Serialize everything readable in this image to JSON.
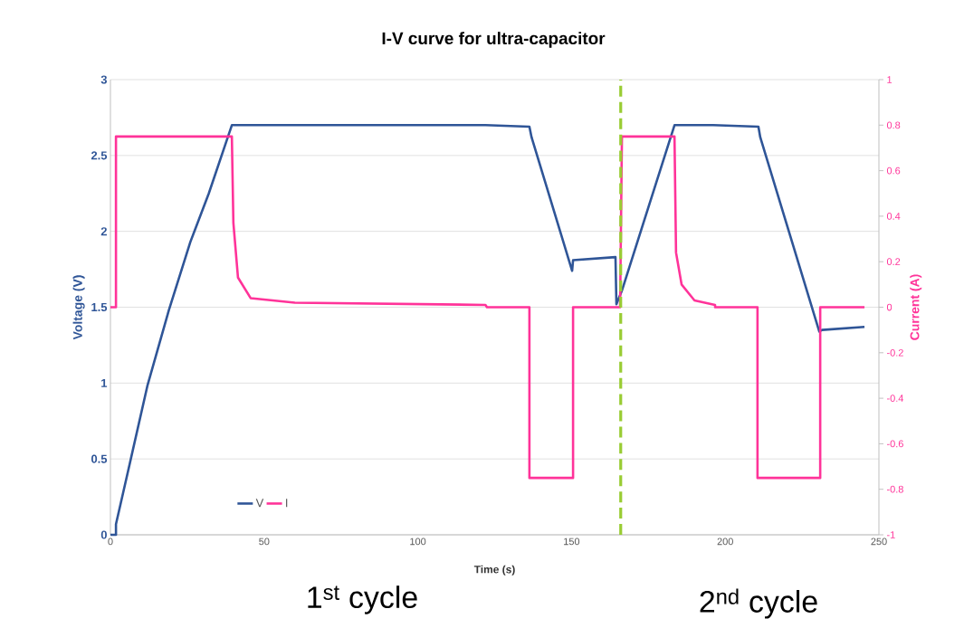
{
  "chart_data": {
    "type": "line",
    "title": "I-V curve for ultra-capacitor",
    "xlabel": "Time (s)",
    "ylabel": "Voltage (V)",
    "y2label": "Current (A)",
    "series": [
      {
        "name": "V",
        "color": "#2f5597",
        "x": [
          0,
          1.8,
          1.8,
          6.3,
          12,
          19,
          26,
          32,
          39.5,
          122,
          136.3,
          137,
          150.2,
          150.5,
          164.3,
          164.6,
          166.4,
          183.5,
          196.1,
          210.8,
          211.4,
          230.6,
          231.5,
          245.3
        ],
        "values": [
          0,
          0,
          0.07,
          0.47,
          0.98,
          1.48,
          1.93,
          2.25,
          2.7,
          2.7,
          2.69,
          2.62,
          1.74,
          1.81,
          1.83,
          1.52,
          1.61,
          2.7,
          2.7,
          2.69,
          2.62,
          1.34,
          1.35,
          1.37
        ]
      },
      {
        "name": "I",
        "color": "#ff3399",
        "axis": "y2",
        "x": [
          0,
          1.8,
          1.8,
          39.5,
          40,
          41.5,
          45.6,
          60,
          122,
          122.5,
          136.3,
          136.3,
          150.5,
          150.5,
          165.8,
          166.4,
          183.5,
          184,
          185.8,
          190,
          196.7,
          196.7,
          210.5,
          210.5,
          230.9,
          230.9,
          245.3
        ],
        "values": [
          0,
          0,
          0.75,
          0.75,
          0.37,
          0.13,
          0.04,
          0.02,
          0.01,
          0,
          0,
          -0.75,
          -0.75,
          0,
          0,
          0.75,
          0.75,
          0.24,
          0.1,
          0.03,
          0.01,
          0,
          0,
          -0.75,
          -0.75,
          0,
          0
        ]
      }
    ],
    "xlim": [
      0,
      250
    ],
    "xticks": [
      0,
      50,
      100,
      150,
      200,
      250
    ],
    "ylim": [
      0,
      3
    ],
    "yticks": [
      0,
      0.5,
      1,
      1.5,
      2,
      2.5,
      3
    ],
    "y2lim": [
      -1,
      1
    ],
    "y2ticks": [
      -1,
      -0.8,
      -0.6,
      -0.4,
      -0.2,
      0,
      0.2,
      0.4,
      0.6,
      0.8,
      1
    ],
    "ref_lines": [
      {
        "axis": "x",
        "value": 166,
        "color": "#99cc33",
        "line_style": "dashed"
      }
    ],
    "annotations": [
      "1$^{st}$ cycle",
      "2$^{nd}$ cycle"
    ],
    "grid": "y",
    "legend": "bottom left",
    "marker": "none",
    "line_style": "solid"
  }
}
